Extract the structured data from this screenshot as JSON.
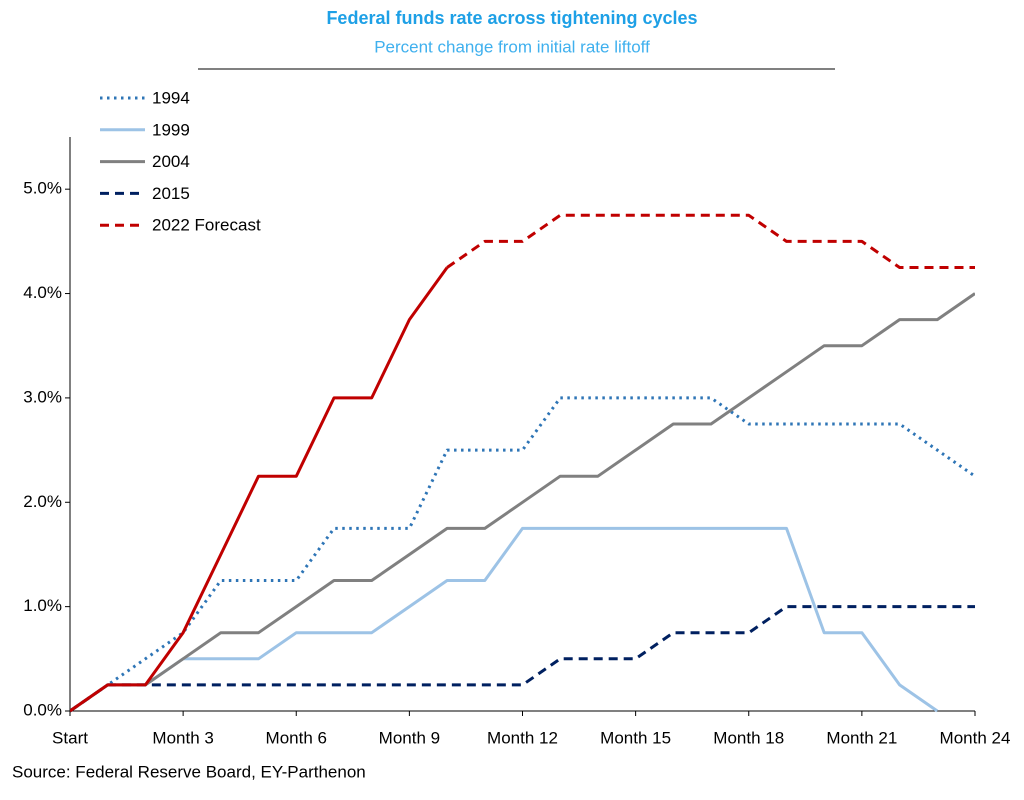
{
  "chart_data": {
    "type": "line",
    "title": "Federal funds rate across tightening cycles",
    "subtitle": "Percent change from initial rate liftoff",
    "source": "Source: Federal Reserve Board, EY-Parthenon",
    "categories": [
      "Start",
      null,
      null,
      "Month 3",
      null,
      null,
      "Month 6",
      null,
      null,
      "Month 9",
      null,
      null,
      "Month 12",
      null,
      null,
      "Month 15",
      null,
      null,
      "Month 18",
      null,
      null,
      "Month 21",
      null,
      null,
      "Month 24"
    ],
    "ylim": [
      0,
      5.5
    ],
    "yticks": [
      {
        "value": 0,
        "label": "0.0%"
      },
      {
        "value": 1,
        "label": "1.0%"
      },
      {
        "value": 2,
        "label": "2.0%"
      },
      {
        "value": 3,
        "label": "3.0%"
      },
      {
        "value": 4,
        "label": "4.0%"
      },
      {
        "value": 5,
        "label": "5.0%"
      }
    ],
    "grid": false,
    "legend": "top-left",
    "series": [
      {
        "name": "1994",
        "color": "#2e75b6",
        "style": "dotted",
        "values": [
          0,
          0.25,
          0.5,
          0.75,
          1.25,
          1.25,
          1.25,
          1.75,
          1.75,
          1.75,
          2.5,
          2.5,
          2.5,
          3.0,
          3.0,
          3.0,
          3.0,
          3.0,
          2.75,
          2.75,
          2.75,
          2.75,
          2.75,
          2.5,
          2.25
        ]
      },
      {
        "name": "1999",
        "color": "#9dc3e6",
        "style": "solid",
        "values": [
          0,
          0.25,
          0.25,
          0.5,
          0.5,
          0.5,
          0.75,
          0.75,
          0.75,
          1.0,
          1.25,
          1.25,
          1.75,
          1.75,
          1.75,
          1.75,
          1.75,
          1.75,
          1.75,
          1.75,
          0.75,
          0.75,
          0.25,
          0,
          null
        ]
      },
      {
        "name": "2004",
        "color": "#808080",
        "style": "solid",
        "values": [
          0,
          0.25,
          0.25,
          0.5,
          0.75,
          0.75,
          1.0,
          1.25,
          1.25,
          1.5,
          1.75,
          1.75,
          2.0,
          2.25,
          2.25,
          2.5,
          2.75,
          2.75,
          3.0,
          3.25,
          3.5,
          3.5,
          3.75,
          3.75,
          4.0
        ]
      },
      {
        "name": "2015",
        "color": "#002060",
        "style": "dashed",
        "values": [
          0,
          0.25,
          0.25,
          0.25,
          0.25,
          0.25,
          0.25,
          0.25,
          0.25,
          0.25,
          0.25,
          0.25,
          0.25,
          0.5,
          0.5,
          0.5,
          0.75,
          0.75,
          0.75,
          1.0,
          1.0,
          1.0,
          1.0,
          1.0,
          1.0
        ]
      },
      {
        "name": "2022 Forecast",
        "color": "#c00000",
        "style": "dashed",
        "solid_through": 10,
        "values": [
          0,
          0.25,
          0.25,
          0.75,
          1.5,
          2.25,
          2.25,
          3.0,
          3.0,
          3.75,
          4.25,
          4.5,
          4.5,
          4.75,
          4.75,
          4.75,
          4.75,
          4.75,
          4.75,
          4.5,
          4.5,
          4.5,
          4.25,
          4.25,
          4.25
        ]
      }
    ]
  }
}
